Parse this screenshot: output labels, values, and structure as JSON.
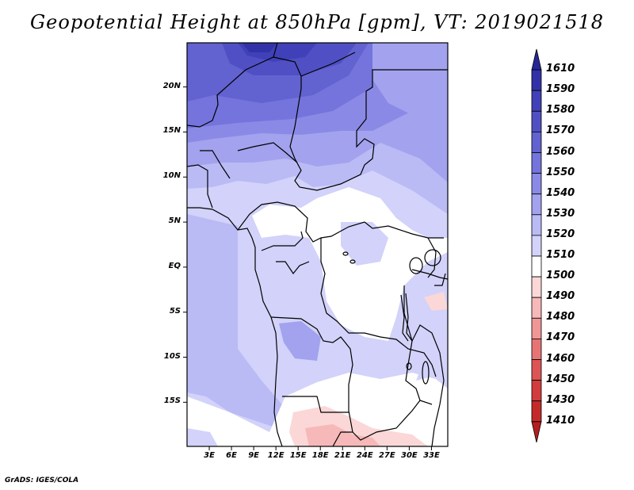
{
  "title": "Geopotential Height at 850hPa [gpm], VT: 2019021518",
  "credit": "GrADS: IGES/COLA",
  "lat_ticks": [
    {
      "label": "20N",
      "lat": 20
    },
    {
      "label": "15N",
      "lat": 15
    },
    {
      "label": "10N",
      "lat": 10
    },
    {
      "label": "5N",
      "lat": 5
    },
    {
      "label": "EQ",
      "lat": 0
    },
    {
      "label": "5S",
      "lat": -5
    },
    {
      "label": "10S",
      "lat": -10
    },
    {
      "label": "15S",
      "lat": -15
    }
  ],
  "lon_ticks": [
    {
      "label": "3E",
      "lon": 3
    },
    {
      "label": "6E",
      "lon": 6
    },
    {
      "label": "9E",
      "lon": 9
    },
    {
      "label": "12E",
      "lon": 12
    },
    {
      "label": "15E",
      "lon": 15
    },
    {
      "label": "18E",
      "lon": 18
    },
    {
      "label": "21E",
      "lon": 21
    },
    {
      "label": "24E",
      "lon": 24
    },
    {
      "label": "27E",
      "lon": 27
    },
    {
      "label": "30E",
      "lon": 30
    },
    {
      "label": "33E",
      "lon": 33
    }
  ],
  "colorbar": {
    "levels": [
      "1610",
      "1590",
      "1580",
      "1570",
      "1560",
      "1550",
      "1540",
      "1530",
      "1520",
      "1510",
      "1500",
      "1490",
      "1480",
      "1470",
      "1460",
      "1450",
      "1430",
      "1410"
    ],
    "colors": [
      "#262699",
      "#3232a8",
      "#4040b8",
      "#5050c4",
      "#6262d0",
      "#7474dc",
      "#8a8ae6",
      "#a2a2ee",
      "#babaf5",
      "#d2d2fa",
      "#ffffff",
      "#fbd7d7",
      "#f6b8b8",
      "#ef9696",
      "#e67474",
      "#dc5454",
      "#d23c3c",
      "#c42a2a",
      "#b41e1e"
    ]
  }
}
